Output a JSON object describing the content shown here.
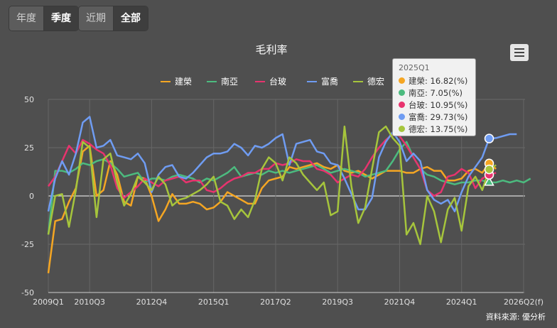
{
  "tabs_period": [
    {
      "label": "年度",
      "active": false
    },
    {
      "label": "季度",
      "active": true
    }
  ],
  "tabs_range": [
    {
      "label": "近期",
      "active": false
    },
    {
      "label": "全部",
      "active": true
    }
  ],
  "source": "資料來源: 優分析",
  "tooltip": {
    "title": "2025Q1",
    "rows": [
      {
        "name": "建榮",
        "value": "16.82(%)",
        "color": "#f5a623"
      },
      {
        "name": "南亞",
        "value": "7.05(%)",
        "color": "#4cbb7f"
      },
      {
        "name": "台玻",
        "value": "10.95(%)",
        "color": "#e8336e"
      },
      {
        "name": "富喬",
        "value": "29.73(%)",
        "color": "#6f9cf2"
      },
      {
        "name": "德宏",
        "value": "13.75(%)",
        "color": "#a6c53c"
      }
    ]
  },
  "chart_data": {
    "type": "line",
    "title": "毛利率",
    "x_tick_labels": [
      "2009Q1",
      "2010Q3",
      "2012Q4",
      "2015Q1",
      "2017Q2",
      "2019Q3",
      "2021Q4",
      "2024Q1",
      "2026Q2(f)"
    ],
    "x_tick_index": [
      0,
      6,
      15,
      24,
      33,
      42,
      51,
      60,
      69
    ],
    "y_ticks": [
      50,
      25,
      0,
      -25,
      -50
    ],
    "ylim": [
      -50,
      50
    ],
    "legend_position": "top",
    "highlight_index": 64,
    "series": [
      {
        "name": "建榮",
        "color": "#f5a623",
        "values": [
          -40,
          -13,
          -12,
          -3,
          4,
          23,
          26,
          0,
          3,
          18,
          11,
          -3,
          -5,
          10,
          9,
          0,
          -13,
          -7,
          1,
          -4,
          -4,
          -3,
          -4,
          -7,
          -6,
          -3,
          2,
          0,
          -2,
          -4,
          -4,
          4,
          8,
          9,
          10,
          15,
          14,
          15,
          16,
          17,
          15,
          14,
          16,
          13,
          12,
          13,
          11,
          9,
          11,
          13,
          13,
          13,
          12,
          12,
          14,
          15,
          13,
          13,
          8,
          8,
          9,
          13,
          14,
          12,
          16.82,
          14
        ]
      },
      {
        "name": "南亞",
        "color": "#4cbb7f",
        "values": [
          -20,
          13,
          13,
          12,
          14,
          17,
          16,
          18,
          19,
          17,
          14,
          10,
          11,
          12,
          7,
          9,
          9,
          8,
          10,
          11,
          10,
          9,
          7,
          9,
          8,
          10,
          12,
          15,
          10,
          11,
          12,
          11,
          13,
          12,
          13,
          12,
          13,
          14,
          15,
          16,
          14,
          12,
          13,
          14,
          13,
          12,
          10,
          11,
          12,
          13,
          18,
          24,
          28,
          20,
          14,
          11,
          10,
          8,
          7,
          6,
          7,
          7,
          8,
          8,
          7.05,
          7,
          8,
          7,
          8,
          7,
          9
        ]
      },
      {
        "name": "台玻",
        "color": "#e8336e",
        "values": [
          5,
          10,
          18,
          26,
          22,
          29,
          27,
          24,
          22,
          16,
          4,
          -1,
          2,
          5,
          9,
          7,
          5,
          8,
          9,
          10,
          7,
          8,
          8,
          3,
          2,
          4,
          7,
          9,
          10,
          12,
          12,
          14,
          14,
          17,
          16,
          17,
          19,
          18,
          18,
          14,
          13,
          11,
          7,
          9,
          11,
          10,
          14,
          20,
          25,
          29,
          32,
          31,
          26,
          20,
          14,
          3,
          0,
          2,
          10,
          11,
          14,
          12,
          4,
          9,
          10.95,
          12
        ]
      },
      {
        "name": "富喬",
        "color": "#6f9cf2",
        "values": [
          -8,
          9,
          18,
          11,
          22,
          38,
          41,
          25,
          26,
          29,
          21,
          20,
          19,
          22,
          17,
          2,
          11,
          15,
          16,
          10,
          9,
          12,
          16,
          20,
          22,
          22,
          23,
          27,
          25,
          21,
          26,
          25,
          27,
          30,
          32,
          16,
          27,
          28,
          29,
          23,
          22,
          17,
          16,
          9,
          1,
          -7,
          -7,
          -1,
          20,
          28,
          33,
          28,
          18,
          22,
          18,
          3,
          -2,
          -4,
          -2,
          -8,
          2,
          10,
          15,
          20,
          29.73,
          30,
          31,
          32,
          32
        ]
      },
      {
        "name": "德宏",
        "color": "#a6c53c",
        "values": [
          -20,
          0,
          1,
          -16,
          3,
          28,
          25,
          -11,
          19,
          22,
          7,
          -5,
          1,
          10,
          7,
          3,
          10,
          6,
          -5,
          -2,
          -1,
          1,
          3,
          6,
          10,
          -3,
          -5,
          -12,
          -7,
          -11,
          -2,
          14,
          20,
          17,
          8,
          20,
          17,
          11,
          7,
          3,
          7,
          -10,
          -8,
          36,
          5,
          -14,
          -6,
          14,
          33,
          36,
          30,
          26,
          -20,
          -14,
          -25,
          0,
          -8,
          -24,
          -7,
          -1,
          -18,
          5,
          10,
          3,
          13.75,
          16
        ]
      }
    ]
  }
}
